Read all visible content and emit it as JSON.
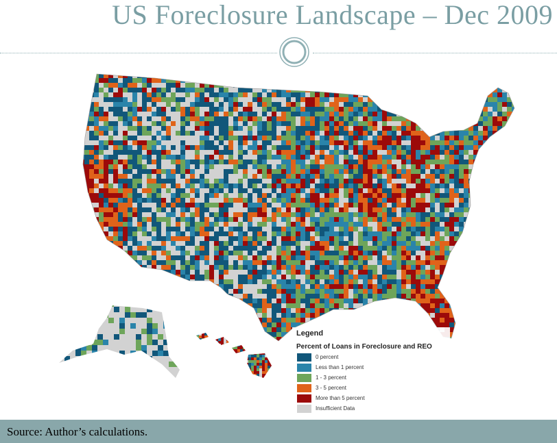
{
  "title": "US Foreclosure Landscape – Dec 2009",
  "legend": {
    "title": "Legend",
    "subtitle": "Percent of Loans in Foreclosure and REO",
    "items": [
      {
        "label": "0 percent",
        "color": "#11577a"
      },
      {
        "label": "Less than 1 percent",
        "color": "#2a84aa"
      },
      {
        "label": "1 - 3 percent",
        "color": "#6ea55a"
      },
      {
        "label": "3 - 5 percent",
        "color": "#e0631a"
      },
      {
        "label": "More than 5 percent",
        "color": "#9c0a0a"
      },
      {
        "label": "Insufficient Data",
        "color": "#d2d2d2"
      }
    ]
  },
  "footer": {
    "source": "Source: Author’s calculations."
  },
  "colors": {
    "title": "#7a9ea3",
    "footer_bg": "#89a7aa",
    "insufficient": "#d2d2d2"
  }
}
